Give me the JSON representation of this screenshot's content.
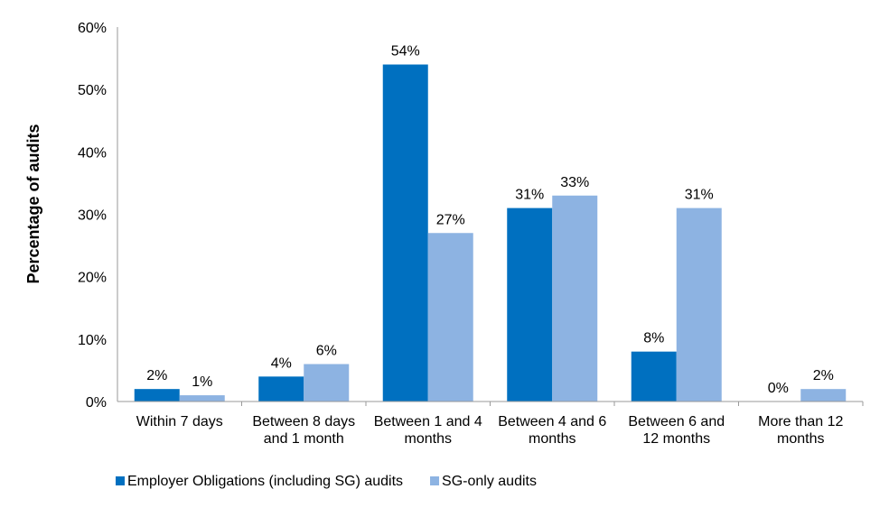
{
  "chart_data": {
    "type": "bar",
    "title": "",
    "xlabel": "",
    "ylabel": "Percentage of audits",
    "ylim": [
      0,
      60
    ],
    "yticks": [
      "0%",
      "10%",
      "20%",
      "30%",
      "40%",
      "50%",
      "60%"
    ],
    "ytick_values": [
      0,
      10,
      20,
      30,
      40,
      50,
      60
    ],
    "grid": false,
    "legend_position": "bottom",
    "categories": [
      [
        "Within 7 days"
      ],
      [
        "Between 8 days",
        "and 1 month"
      ],
      [
        "Between 1 and 4",
        "months"
      ],
      [
        "Between 4 and 6",
        "months"
      ],
      [
        "Between 6 and",
        "12 months"
      ],
      [
        "More than 12",
        "months"
      ]
    ],
    "series": [
      {
        "name": "Employer Obligations (including SG) audits",
        "color": "#0070C0",
        "values": [
          2,
          4,
          54,
          31,
          8,
          0
        ],
        "labels": [
          "2%",
          "4%",
          "54%",
          "31%",
          "8%",
          "0%"
        ]
      },
      {
        "name": "SG-only audits",
        "color": "#8DB3E2",
        "values": [
          1,
          6,
          27,
          33,
          31,
          2
        ],
        "labels": [
          "1%",
          "6%",
          "27%",
          "33%",
          "31%",
          "2%"
        ]
      }
    ]
  }
}
